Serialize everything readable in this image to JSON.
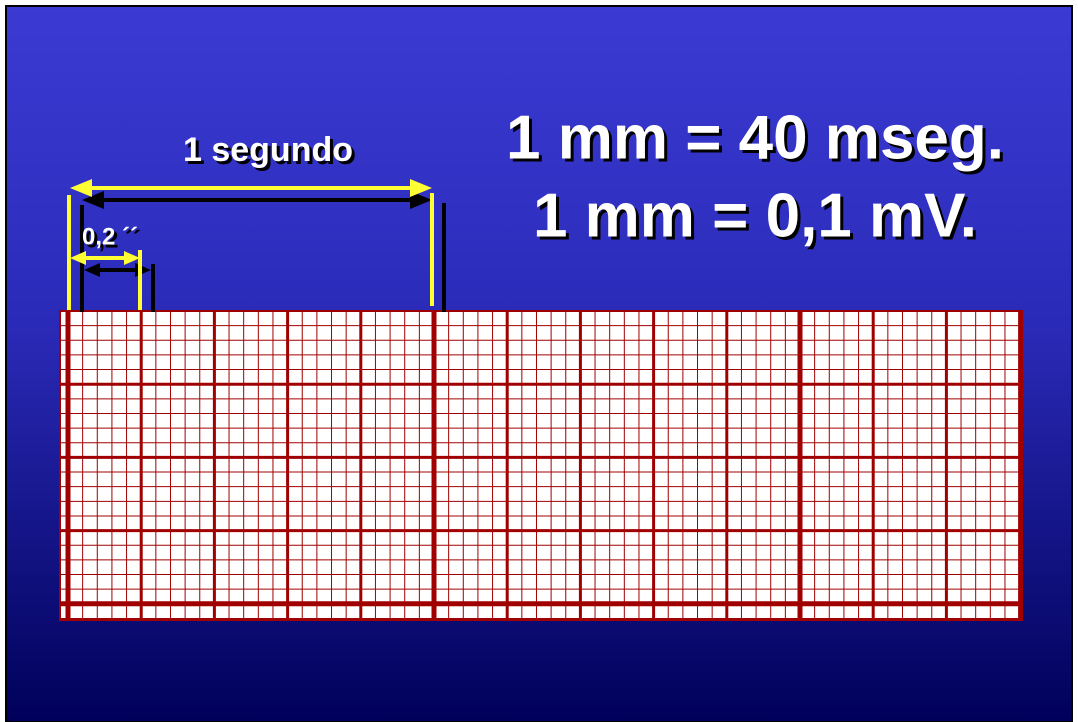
{
  "slide": {
    "label_second": "1 segundo",
    "label_small": "0,2 ´´",
    "line1": "1 mm = 40 mseg.",
    "line2": "1 mm = 0,1 mV."
  }
}
